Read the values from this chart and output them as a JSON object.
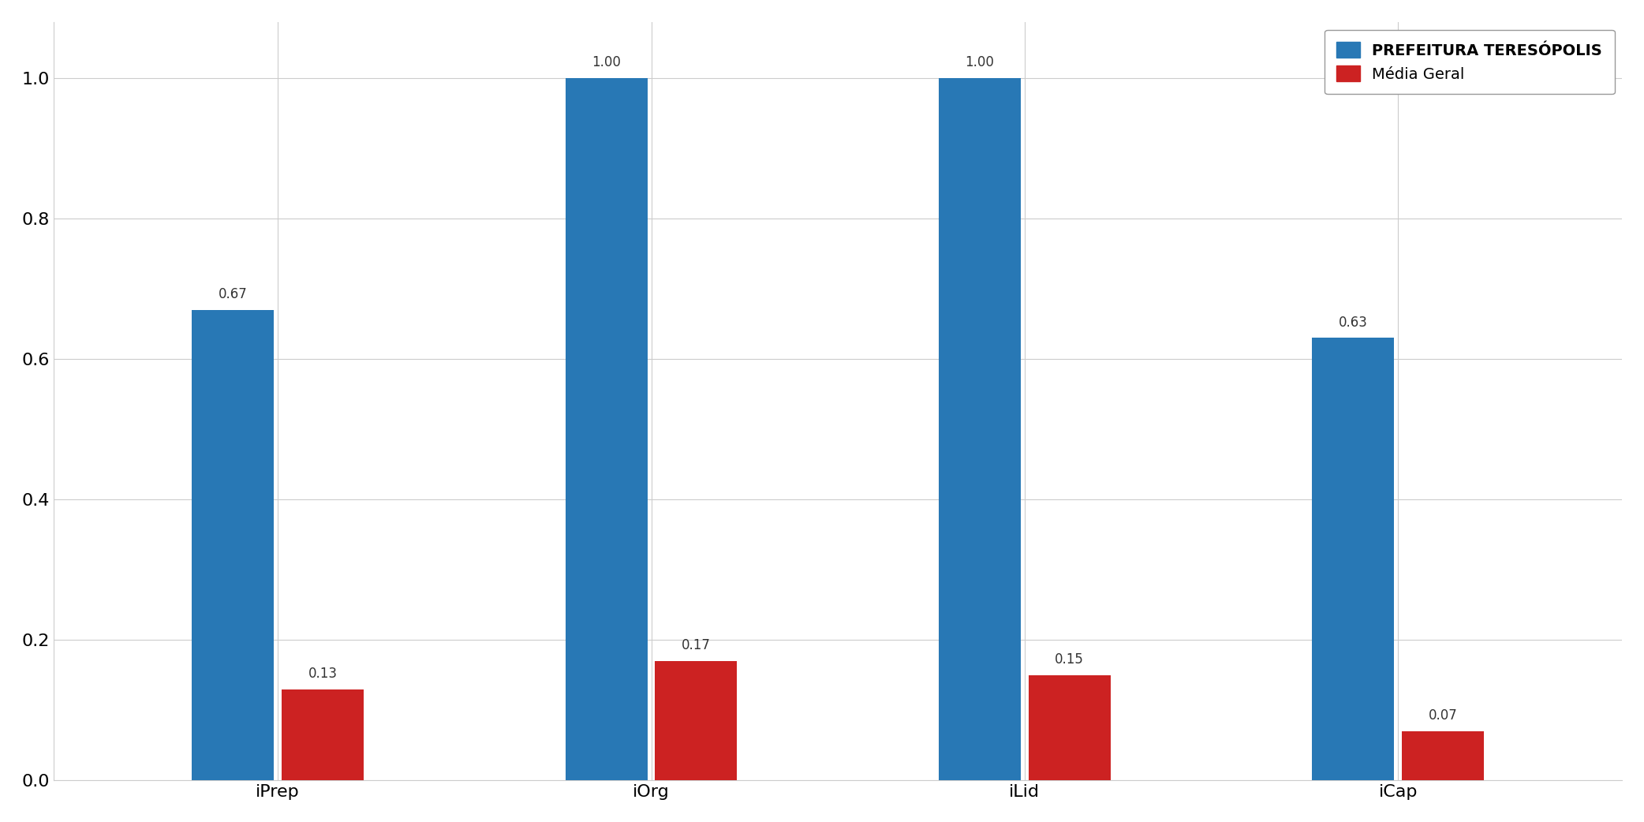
{
  "categories": [
    "iPrep",
    "iOrg",
    "iLid",
    "iCap"
  ],
  "prefeitura_values": [
    0.67,
    1.0,
    1.0,
    0.63
  ],
  "media_values": [
    0.13,
    0.17,
    0.15,
    0.07
  ],
  "prefeitura_color": "#2878b5",
  "media_color": "#cc2222",
  "legend_labels": [
    "PREFEITURA TERESÓPOLIS",
    "Média Geral"
  ],
  "ylim": [
    0.0,
    1.08
  ],
  "yticks": [
    0.0,
    0.2,
    0.4,
    0.6,
    0.8,
    1.0
  ],
  "ytick_labels": [
    "0.0",
    "0.2",
    "0.4",
    "0.6",
    "0.8",
    "1.0"
  ],
  "background_color": "#ffffff",
  "grid_color": "#cccccc",
  "bar_width": 0.22,
  "label_fontsize": 16,
  "tick_fontsize": 16,
  "legend_fontsize": 14,
  "annotation_fontsize": 12
}
